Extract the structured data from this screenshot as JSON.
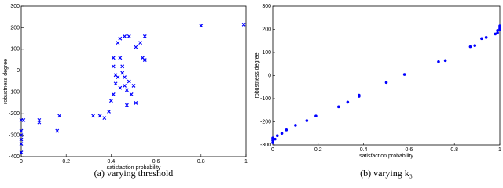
{
  "chart_data": [
    {
      "type": "scatter",
      "marker": "x",
      "color": "#0000ff",
      "x_label": "satisfaction probability",
      "y_label": "robustness degree",
      "caption": "(a)  varying threshold",
      "xlim": [
        0,
        1
      ],
      "xticks": [
        0,
        0.2,
        0.4,
        0.6,
        0.8,
        1
      ],
      "ylim": [
        -400,
        300
      ],
      "yticks": [
        -400,
        -300,
        -200,
        -100,
        0,
        100,
        200,
        300
      ],
      "x": [
        0,
        0,
        0,
        0,
        0,
        0,
        0.01,
        0.08,
        0.08,
        0.17,
        0.16,
        0.32,
        0.35,
        0.37,
        0.39,
        0.4,
        0.41,
        0.41,
        0.41,
        0.42,
        0.43,
        0.43,
        0.44,
        0.44,
        0.45,
        0.45,
        0.46,
        0.46,
        0.47,
        0.47,
        0.48,
        0.48,
        0.49,
        0.5,
        0.51,
        0.51,
        0.53,
        0.54,
        0.55,
        0.55,
        0.8,
        0.99,
        0.42,
        0.44,
        0.46
      ],
      "values": [
        -230,
        -280,
        -300,
        -320,
        -340,
        -380,
        -230,
        -230,
        -240,
        -210,
        -280,
        -210,
        -210,
        -220,
        -190,
        -140,
        -110,
        20,
        60,
        -20,
        -30,
        130,
        150,
        60,
        20,
        -10,
        160,
        -70,
        -90,
        -160,
        160,
        -50,
        -110,
        -70,
        110,
        -150,
        130,
        60,
        50,
        160,
        210,
        215,
        -60,
        -80,
        -30
      ]
    },
    {
      "type": "scatter",
      "marker": "dot",
      "color": "#0000ff",
      "x_label": "satisfaction probability",
      "y_label": "robustness degree",
      "caption": "(b)  varying k₃",
      "xlim": [
        0,
        1
      ],
      "xticks": [
        0,
        0.2,
        0.4,
        0.6,
        0.8,
        1
      ],
      "ylim": [
        -300,
        300
      ],
      "yticks": [
        -300,
        -200,
        -100,
        0,
        100,
        200,
        300
      ],
      "x": [
        0,
        0,
        0,
        0.01,
        0.02,
        0.04,
        0.06,
        0.1,
        0.15,
        0.19,
        0.29,
        0.33,
        0.38,
        0.38,
        0.5,
        0.58,
        0.73,
        0.76,
        0.87,
        0.89,
        0.92,
        0.94,
        0.98,
        0.99,
        1,
        1,
        1,
        0.99
      ],
      "values": [
        -290,
        -280,
        -270,
        -275,
        -260,
        -250,
        -235,
        -215,
        -195,
        -175,
        -135,
        -115,
        -90,
        -85,
        -30,
        5,
        60,
        65,
        125,
        130,
        160,
        165,
        180,
        195,
        205,
        215,
        200,
        185
      ]
    }
  ]
}
